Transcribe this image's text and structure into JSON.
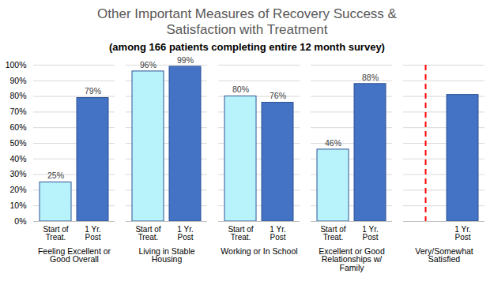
{
  "chart_data": {
    "type": "bar",
    "title": "Other Important Measures of Recovery Success & Satisfaction with Treatment",
    "subtitle": "(among 166 patients completing entire 12 month survey)",
    "categories": [
      "Feeling Excellent or Good Overall",
      "Living in Stable Housing",
      "Working or In School",
      "Excellent or Good Relationships w/ Family",
      "Very/Somewhat Satisfied"
    ],
    "series": [
      {
        "name": "Start of Treat.",
        "color": "#b8f2fb",
        "values": [
          25,
          96,
          80,
          46,
          null
        ],
        "value_labels": [
          "25%",
          "96%",
          "80%",
          "46%",
          null
        ]
      },
      {
        "name": "1 Yr. Post",
        "color": "#4472c4",
        "values": [
          79,
          99,
          76,
          88,
          81
        ],
        "value_labels": [
          "79%",
          "99%",
          "76%",
          "88%",
          null
        ]
      }
    ],
    "ylim": [
      0,
      100
    ],
    "yticks": [
      {
        "value": 0,
        "label": "0%"
      },
      {
        "value": 10,
        "label": "10%"
      },
      {
        "value": 20,
        "label": "20%"
      },
      {
        "value": 30,
        "label": "30%"
      },
      {
        "value": 40,
        "label": "40%"
      },
      {
        "value": 50,
        "label": "50%"
      },
      {
        "value": 60,
        "label": "60%"
      },
      {
        "value": 70,
        "label": "70%"
      },
      {
        "value": 80,
        "label": "80%"
      },
      {
        "value": 90,
        "label": "90%"
      },
      {
        "value": 100,
        "label": "100%"
      }
    ],
    "grid": true,
    "data_labels": true
  }
}
